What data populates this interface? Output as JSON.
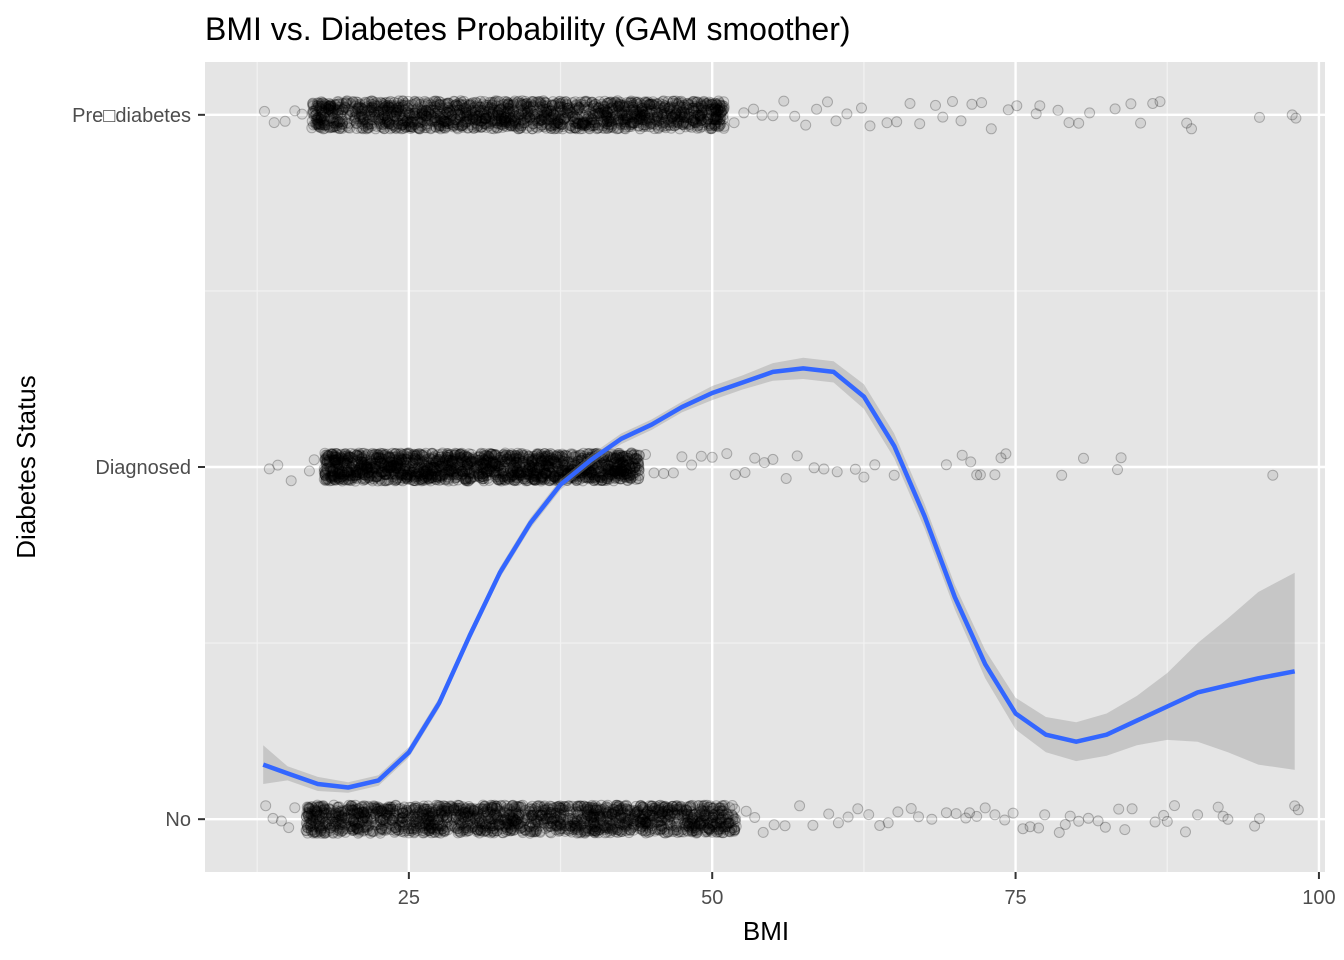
{
  "chart_data": {
    "type": "scatter",
    "title": "BMI vs. Diabetes Probability (GAM smoother)",
    "xlabel": "BMI",
    "ylabel": "Diabetes Status",
    "xlim": [
      8.2,
      100.5
    ],
    "x_ticks": [
      25,
      50,
      75,
      100
    ],
    "x_tick_labels": [
      "25",
      "50",
      "75",
      "100"
    ],
    "categories": [
      "No",
      "Diagnosed",
      "Pre□diabetes"
    ],
    "category_positions": [
      1,
      2,
      3
    ],
    "ylim": [
      0.85,
      3.15
    ],
    "grid": true,
    "panel_background": "#e5e5e5",
    "point_color": "#000000",
    "point_alpha": 0.25,
    "line_color": "#3366ff",
    "ribbon_color": "#999999",
    "series": [
      {
        "category": "No",
        "dense_range": [
          16.5,
          52
        ],
        "sparse_x": [
          13.2,
          13.8,
          14.5,
          15.1,
          15.6,
          52.8,
          53.5,
          54.2,
          55.1,
          56.0,
          57.2,
          58.3,
          59.6,
          60.4,
          61.2,
          62.0,
          62.9,
          63.8,
          64.5,
          65.3,
          66.4,
          67.0,
          68.1,
          69.3,
          70.1,
          70.9,
          71.2,
          71.8,
          72.5,
          73.3,
          74.1,
          74.8,
          75.6,
          76.2,
          76.9,
          77.4,
          78.6,
          79.1,
          79.5,
          80.2,
          81.0,
          81.8,
          82.4,
          83.5,
          84.0,
          84.6,
          86.5,
          87.2,
          87.5,
          88.1,
          89.0,
          90.0,
          91.7,
          92.1,
          92.5,
          94.7,
          95.1,
          98.0,
          98.3
        ]
      },
      {
        "category": "Diagnosed",
        "dense_range": [
          18,
          44
        ],
        "sparse_x": [
          13.5,
          14.2,
          15.3,
          16.8,
          17.2,
          44.5,
          45.2,
          46.0,
          46.8,
          47.5,
          48.3,
          49.1,
          50.0,
          51.2,
          51.9,
          52.7,
          53.5,
          54.3,
          55.0,
          56.1,
          57.0,
          58.4,
          59.2,
          60.3,
          61.8,
          62.5,
          63.4,
          65.0,
          69.3,
          70.6,
          71.3,
          71.8,
          72.1,
          73.3,
          73.8,
          74.2,
          78.8,
          80.6,
          83.4,
          83.7,
          96.2
        ]
      },
      {
        "category": "Pre□diabetes",
        "dense_range": [
          17,
          51
        ],
        "sparse_x": [
          13.1,
          13.9,
          14.8,
          15.6,
          16.2,
          51.8,
          52.6,
          53.4,
          54.1,
          55.0,
          55.9,
          56.8,
          57.7,
          58.6,
          59.5,
          60.2,
          61.1,
          62.3,
          63.0,
          64.4,
          65.2,
          66.3,
          67.1,
          68.4,
          69.0,
          69.8,
          70.5,
          71.4,
          72.2,
          73.0,
          74.4,
          75.1,
          76.7,
          77.0,
          78.5,
          79.4,
          80.2,
          81.1,
          83.2,
          84.5,
          85.3,
          86.3,
          86.9,
          89.1,
          89.5,
          95.1,
          97.8,
          98.1
        ]
      }
    ],
    "smoother": {
      "x": [
        13,
        15,
        17.5,
        20,
        22.5,
        25,
        27.5,
        30,
        32.5,
        35,
        37.5,
        40,
        42.5,
        45,
        47.5,
        50,
        52.5,
        55,
        57.5,
        60,
        62.5,
        65,
        67.5,
        70,
        72.5,
        75,
        77.5,
        80,
        82.5,
        85,
        87.5,
        90,
        92.5,
        95,
        98
      ],
      "y": [
        1.155,
        1.13,
        1.1,
        1.09,
        1.11,
        1.19,
        1.33,
        1.52,
        1.7,
        1.84,
        1.95,
        2.02,
        2.08,
        2.12,
        2.17,
        2.21,
        2.24,
        2.27,
        2.28,
        2.27,
        2.2,
        2.06,
        1.86,
        1.63,
        1.44,
        1.3,
        1.24,
        1.22,
        1.24,
        1.28,
        1.32,
        1.36,
        1.38,
        1.4,
        1.42
      ],
      "lower": [
        1.1,
        1.11,
        1.08,
        1.075,
        1.095,
        1.175,
        1.315,
        1.505,
        1.685,
        1.825,
        1.935,
        2.005,
        2.065,
        2.105,
        2.155,
        2.19,
        2.22,
        2.245,
        2.25,
        2.24,
        2.165,
        2.025,
        1.825,
        1.595,
        1.4,
        1.255,
        1.19,
        1.165,
        1.18,
        1.21,
        1.225,
        1.22,
        1.19,
        1.155,
        1.14
      ],
      "upper": [
        1.21,
        1.15,
        1.12,
        1.105,
        1.125,
        1.205,
        1.345,
        1.535,
        1.715,
        1.855,
        1.965,
        2.035,
        2.095,
        2.135,
        2.185,
        2.23,
        2.26,
        2.295,
        2.31,
        2.3,
        2.235,
        2.095,
        1.895,
        1.665,
        1.48,
        1.345,
        1.29,
        1.275,
        1.3,
        1.35,
        1.415,
        1.5,
        1.57,
        1.645,
        1.7
      ]
    }
  }
}
